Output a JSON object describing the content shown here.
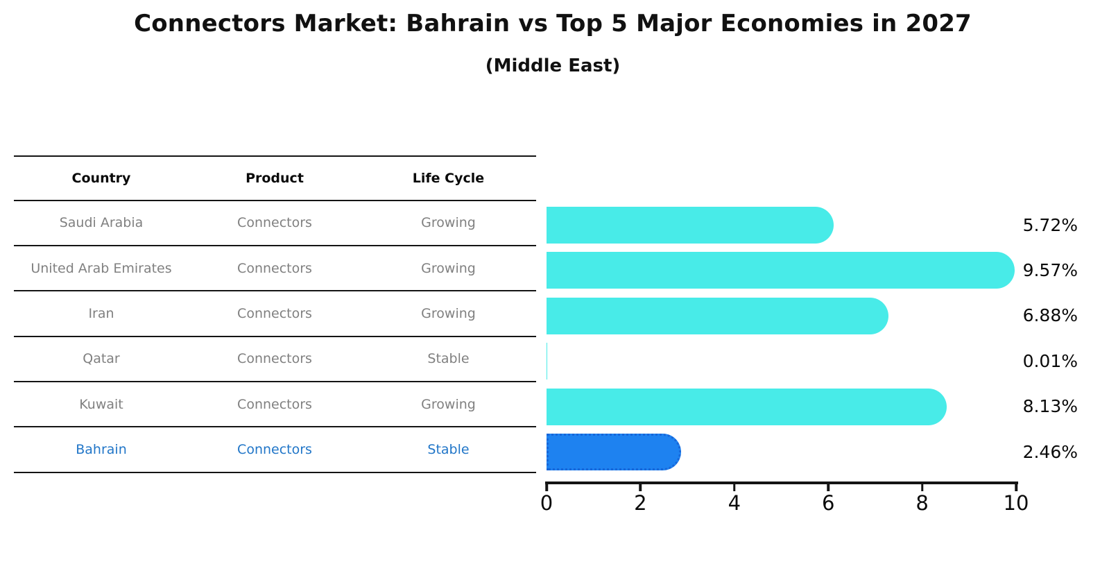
{
  "title": "Connectors Market: Bahrain vs Top 5 Major Economies in 2027",
  "subtitle": "(Middle East)",
  "table": {
    "headers": [
      "Country",
      "Product",
      "Life Cycle"
    ],
    "rows": [
      {
        "country": "Saudi Arabia",
        "product": "Connectors",
        "life_cycle": "Growing",
        "highlighted": false
      },
      {
        "country": "United Arab Emirates",
        "product": "Connectors",
        "life_cycle": "Growing",
        "highlighted": false
      },
      {
        "country": "Iran",
        "product": "Connectors",
        "life_cycle": "Growing",
        "highlighted": false
      },
      {
        "country": "Qatar",
        "product": "Connectors",
        "life_cycle": "Stable",
        "highlighted": false
      },
      {
        "country": "Kuwait",
        "product": "Connectors",
        "life_cycle": "Growing",
        "highlighted": false
      },
      {
        "country": "Bahrain",
        "product": "Connectors",
        "life_cycle": "Stable",
        "highlighted": true
      }
    ]
  },
  "chart_data": {
    "type": "bar",
    "orientation": "horizontal",
    "title": "Connectors Market: Bahrain vs Top 5 Major Economies in 2027",
    "subtitle": "(Middle East)",
    "categories": [
      "Saudi Arabia",
      "United Arab Emirates",
      "Iran",
      "Qatar",
      "Kuwait",
      "Bahrain"
    ],
    "values": [
      5.72,
      9.57,
      6.88,
      0.01,
      8.13,
      2.46
    ],
    "value_labels": [
      "5.72%",
      "9.57%",
      "6.88%",
      "0.01%",
      "8.13%",
      "2.46%"
    ],
    "xlabel": "",
    "ylabel": "",
    "xlim": [
      0,
      10
    ],
    "x_ticks": [
      0,
      2,
      4,
      6,
      8,
      10
    ],
    "x_tick_labels": [
      "0",
      "2",
      "4",
      "6",
      "8",
      "10"
    ],
    "grid": false,
    "legend": false,
    "highlight_index": 5,
    "bar_color": "#48ebe8",
    "highlight_bar_color": "#1e82f0",
    "highlight_border_color": "#1766d9",
    "highlight_text_color": "#2176c8"
  },
  "colors": {
    "background": "#ffffff",
    "bar_cyan": "#48ebe8",
    "bar_blue": "#1e82f0",
    "table_line": "#141414",
    "cell_text_gray": "#808080",
    "highlight_text_blue": "#2176c8"
  }
}
